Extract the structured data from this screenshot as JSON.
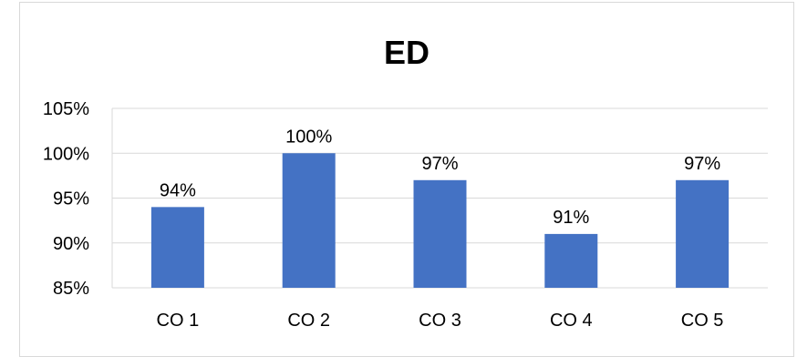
{
  "chart_data": {
    "type": "bar",
    "title": "ED",
    "categories": [
      "CO 1",
      "CO 2",
      "CO 3",
      "CO 4",
      "CO 5"
    ],
    "values": [
      94,
      100,
      97,
      91,
      97
    ],
    "data_labels": [
      "94%",
      "100%",
      "97%",
      "91%",
      "97%"
    ],
    "ylim": [
      85,
      105
    ],
    "ytick_values": [
      85,
      90,
      95,
      100,
      105
    ],
    "ytick_labels": [
      "85%",
      "90%",
      "95%",
      "100%",
      "105%"
    ],
    "xlabel": "",
    "ylabel": "",
    "grid": true,
    "legend": "none",
    "bar_color": "#4472c4",
    "grid_color": "#d9d9d9"
  }
}
